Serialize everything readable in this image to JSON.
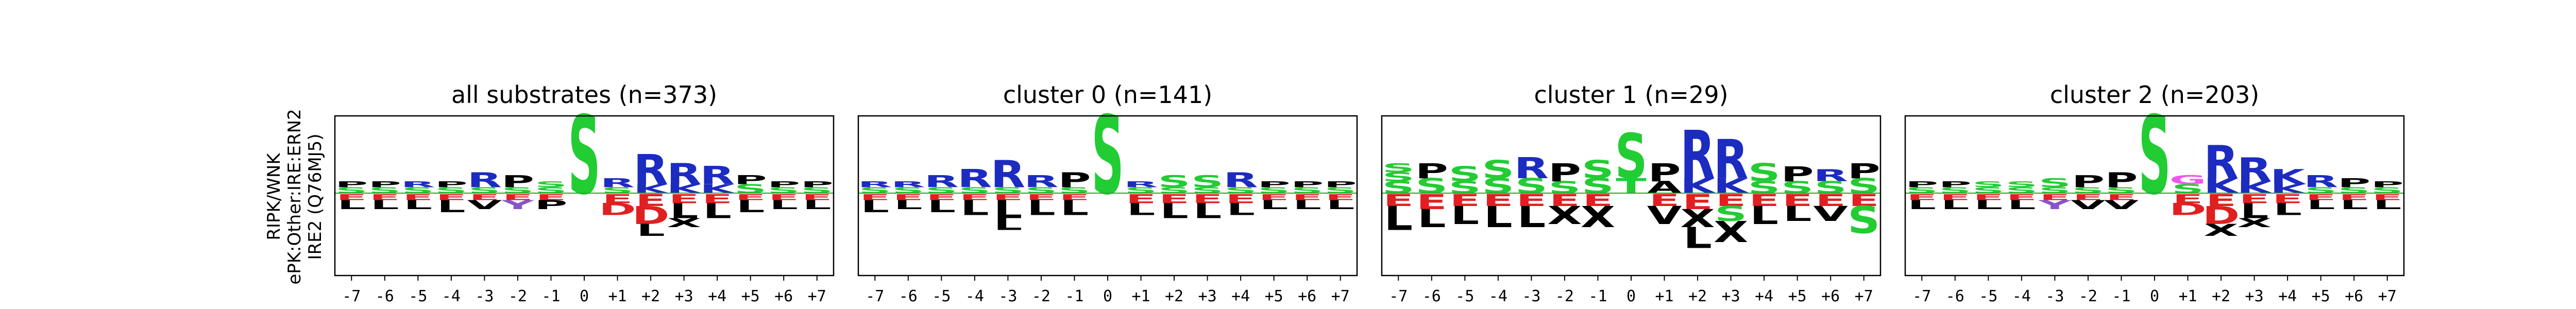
{
  "colors": {
    "S": "#22cc33",
    "T": "#22cc33",
    "R": "#1c2bc0",
    "K": "#1c2bc0",
    "H": "#7799dd",
    "E": "#e02020",
    "D": "#e02020",
    "P": "#000000",
    "L": "#000000",
    "A": "#000000",
    "V": "#000000",
    "I": "#000000",
    "F": "#000000",
    "M": "#000000",
    "W": "#000000",
    "G": "#ee55ee",
    "N": "#cc44cc",
    "Q": "#cc44cc",
    "Y": "#8855cc",
    "C": "#e0a020",
    "X": "#000000",
    "baseline": "#22aa33"
  },
  "y_axis_label": [
    "RIPK/WNK",
    "ePK:Other:IRE:ERN2",
    "IRE2 (Q76MJ5)"
  ],
  "chart_data": [
    {
      "type": "sequence_logo",
      "title": "all substrates (n=373)",
      "positions": [
        "-7",
        "-6",
        "-5",
        "-4",
        "-3",
        "-2",
        "-1",
        "0",
        "+1",
        "+2",
        "+3",
        "+4",
        "+5",
        "+6",
        "+7"
      ],
      "top": [
        [
          [
            "S",
            0.2
          ],
          [
            "P",
            0.2
          ]
        ],
        [
          [
            "S",
            0.2
          ],
          [
            "P",
            0.2
          ]
        ],
        [
          [
            "S",
            0.2
          ],
          [
            "R",
            0.2
          ]
        ],
        [
          [
            "S",
            0.2
          ],
          [
            "P",
            0.2
          ]
        ],
        [
          [
            "S",
            0.2
          ],
          [
            "R",
            0.5
          ]
        ],
        [
          [
            "S",
            0.2
          ],
          [
            "P",
            0.4
          ]
        ],
        [
          [
            "S",
            0.2
          ],
          [
            "S",
            0.2
          ]
        ],
        [
          [
            "S",
            2.6
          ]
        ],
        [
          [
            "S",
            0.2
          ],
          [
            "R",
            0.3
          ]
        ],
        [
          [
            "K",
            0.3
          ],
          [
            "R",
            1.0
          ]
        ],
        [
          [
            "K",
            0.3
          ],
          [
            "R",
            0.7
          ]
        ],
        [
          [
            "K",
            0.3
          ],
          [
            "R",
            0.6
          ]
        ],
        [
          [
            "S",
            0.3
          ],
          [
            "P",
            0.3
          ]
        ],
        [
          [
            "S",
            0.2
          ],
          [
            "P",
            0.2
          ]
        ],
        [
          [
            "S",
            0.2
          ],
          [
            "P",
            0.2
          ]
        ]
      ],
      "bottom": [
        [
          [
            "E",
            0.2
          ],
          [
            "L",
            0.3
          ]
        ],
        [
          [
            "E",
            0.2
          ],
          [
            "L",
            0.3
          ]
        ],
        [
          [
            "E",
            0.2
          ],
          [
            "L",
            0.3
          ]
        ],
        [
          [
            "E",
            0.2
          ],
          [
            "L",
            0.4
          ]
        ],
        [
          [
            "E",
            0.2
          ],
          [
            "V",
            0.3
          ]
        ],
        [
          [
            "E",
            0.2
          ],
          [
            "Y",
            0.3
          ]
        ],
        [
          [
            "E",
            0.2
          ],
          [
            "P",
            0.3
          ]
        ],
        [],
        [
          [
            "E",
            0.3
          ],
          [
            "D",
            0.4
          ]
        ],
        [
          [
            "E",
            0.4
          ],
          [
            "D",
            0.6
          ],
          [
            "L",
            0.4
          ]
        ],
        [
          [
            "E",
            0.3
          ],
          [
            "L",
            0.5
          ],
          [
            "X",
            0.3
          ]
        ],
        [
          [
            "E",
            0.3
          ],
          [
            "L",
            0.5
          ]
        ],
        [
          [
            "E",
            0.2
          ],
          [
            "L",
            0.4
          ]
        ],
        [
          [
            "E",
            0.2
          ],
          [
            "L",
            0.3
          ]
        ],
        [
          [
            "E",
            0.2
          ],
          [
            "L",
            0.3
          ]
        ]
      ]
    },
    {
      "type": "sequence_logo",
      "title": "cluster 0 (n=141)",
      "positions": [
        "-7",
        "-6",
        "-5",
        "-4",
        "-3",
        "-2",
        "-1",
        "0",
        "+1",
        "+2",
        "+3",
        "+4",
        "+5",
        "+6",
        "+7"
      ],
      "top": [
        [
          [
            "S",
            0.2
          ],
          [
            "R",
            0.2
          ]
        ],
        [
          [
            "S",
            0.2
          ],
          [
            "R",
            0.2
          ]
        ],
        [
          [
            "S",
            0.2
          ],
          [
            "R",
            0.4
          ]
        ],
        [
          [
            "S",
            0.2
          ],
          [
            "R",
            0.6
          ]
        ],
        [
          [
            "S",
            0.2
          ],
          [
            "R",
            0.9
          ]
        ],
        [
          [
            "S",
            0.2
          ],
          [
            "R",
            0.4
          ]
        ],
        [
          [
            "S",
            0.2
          ],
          [
            "P",
            0.5
          ]
        ],
        [
          [
            "S",
            2.6
          ]
        ],
        [
          [
            "S",
            0.2
          ],
          [
            "R",
            0.2
          ]
        ],
        [
          [
            "S",
            0.2
          ],
          [
            "S",
            0.4
          ]
        ],
        [
          [
            "S",
            0.2
          ],
          [
            "S",
            0.4
          ]
        ],
        [
          [
            "S",
            0.2
          ],
          [
            "R",
            0.5
          ]
        ],
        [
          [
            "S",
            0.2
          ],
          [
            "P",
            0.2
          ]
        ],
        [
          [
            "S",
            0.2
          ],
          [
            "P",
            0.2
          ]
        ],
        [
          [
            "S",
            0.2
          ],
          [
            "P",
            0.2
          ]
        ]
      ],
      "bottom": [
        [
          [
            "E",
            0.2
          ],
          [
            "L",
            0.4
          ]
        ],
        [
          [
            "E",
            0.2
          ],
          [
            "L",
            0.3
          ]
        ],
        [
          [
            "E",
            0.2
          ],
          [
            "L",
            0.4
          ]
        ],
        [
          [
            "E",
            0.2
          ],
          [
            "L",
            0.5
          ]
        ],
        [
          [
            "E",
            0.2
          ],
          [
            "L",
            0.6
          ],
          [
            "L",
            0.4
          ]
        ],
        [
          [
            "E",
            0.2
          ],
          [
            "L",
            0.5
          ]
        ],
        [
          [
            "E",
            0.2
          ],
          [
            "L",
            0.5
          ]
        ],
        [],
        [
          [
            "E",
            0.3
          ],
          [
            "L",
            0.4
          ]
        ],
        [
          [
            "E",
            0.3
          ],
          [
            "L",
            0.5
          ]
        ],
        [
          [
            "E",
            0.3
          ],
          [
            "L",
            0.5
          ]
        ],
        [
          [
            "E",
            0.3
          ],
          [
            "L",
            0.4
          ]
        ],
        [
          [
            "E",
            0.2
          ],
          [
            "L",
            0.3
          ]
        ],
        [
          [
            "E",
            0.2
          ],
          [
            "L",
            0.3
          ]
        ],
        [
          [
            "E",
            0.2
          ],
          [
            "L",
            0.3
          ]
        ]
      ]
    },
    {
      "type": "sequence_logo",
      "title": "cluster 1 (n=29)",
      "positions": [
        "-7",
        "-6",
        "-5",
        "-4",
        "-3",
        "-2",
        "-1",
        "0",
        "+1",
        "+2",
        "+3",
        "+4",
        "+5",
        "+6",
        "+7"
      ],
      "top": [
        [
          [
            "S",
            0.4
          ],
          [
            "S",
            0.3
          ],
          [
            "S",
            0.3
          ]
        ],
        [
          [
            "S",
            0.5
          ],
          [
            "P",
            0.5
          ]
        ],
        [
          [
            "S",
            0.4
          ],
          [
            "S",
            0.5
          ]
        ],
        [
          [
            "S",
            0.5
          ],
          [
            "S",
            0.6
          ]
        ],
        [
          [
            "S",
            0.5
          ],
          [
            "R",
            0.7
          ]
        ],
        [
          [
            "S",
            0.4
          ],
          [
            "P",
            0.6
          ]
        ],
        [
          [
            "S",
            0.5
          ],
          [
            "S",
            0.6
          ]
        ],
        [
          [
            "T",
            0.5
          ],
          [
            "S",
            1.5
          ]
        ],
        [
          [
            "A",
            0.4
          ],
          [
            "P",
            0.6
          ]
        ],
        [
          [
            "K",
            0.5
          ],
          [
            "R",
            1.6
          ]
        ],
        [
          [
            "K",
            0.5
          ],
          [
            "R",
            1.3
          ]
        ],
        [
          [
            "S",
            0.4
          ],
          [
            "S",
            0.6
          ]
        ],
        [
          [
            "S",
            0.4
          ],
          [
            "P",
            0.5
          ]
        ],
        [
          [
            "S",
            0.4
          ],
          [
            "R",
            0.4
          ]
        ],
        [
          [
            "S",
            0.5
          ],
          [
            "P",
            0.5
          ]
        ]
      ],
      "bottom": [
        [
          [
            "E",
            0.4
          ],
          [
            "L",
            0.8
          ]
        ],
        [
          [
            "E",
            0.5
          ],
          [
            "L",
            0.6
          ]
        ],
        [
          [
            "E",
            0.4
          ],
          [
            "L",
            0.6
          ]
        ],
        [
          [
            "E",
            0.4
          ],
          [
            "L",
            0.7
          ]
        ],
        [
          [
            "E",
            0.4
          ],
          [
            "L",
            0.7
          ]
        ],
        [
          [
            "E",
            0.4
          ],
          [
            "X",
            0.6
          ]
        ],
        [
          [
            "E",
            0.4
          ],
          [
            "X",
            0.7
          ]
        ],
        [],
        [
          [
            "E",
            0.4
          ],
          [
            "V",
            0.6
          ]
        ],
        [
          [
            "E",
            0.5
          ],
          [
            "X",
            0.6
          ],
          [
            "L",
            0.7
          ]
        ],
        [
          [
            "E",
            0.4
          ],
          [
            "S",
            0.5
          ],
          [
            "X",
            0.7
          ]
        ],
        [
          [
            "E",
            0.4
          ],
          [
            "L",
            0.6
          ]
        ],
        [
          [
            "E",
            0.4
          ],
          [
            "L",
            0.5
          ]
        ],
        [
          [
            "E",
            0.4
          ],
          [
            "V",
            0.5
          ]
        ],
        [
          [
            "E",
            0.4
          ],
          [
            "S",
            0.9
          ]
        ]
      ]
    },
    {
      "type": "sequence_logo",
      "title": "cluster 2 (n=203)",
      "positions": [
        "-7",
        "-6",
        "-5",
        "-4",
        "-3",
        "-2",
        "-1",
        "0",
        "+1",
        "+2",
        "+3",
        "+4",
        "+5",
        "+6",
        "+7"
      ],
      "top": [
        [
          [
            "S",
            0.2
          ],
          [
            "P",
            0.2
          ]
        ],
        [
          [
            "S",
            0.2
          ],
          [
            "P",
            0.2
          ]
        ],
        [
          [
            "S",
            0.2
          ],
          [
            "S",
            0.2
          ]
        ],
        [
          [
            "S",
            0.2
          ],
          [
            "S",
            0.2
          ]
        ],
        [
          [
            "S",
            0.2
          ],
          [
            "S",
            0.3
          ]
        ],
        [
          [
            "S",
            0.2
          ],
          [
            "P",
            0.4
          ]
        ],
        [
          [
            "S",
            0.2
          ],
          [
            "P",
            0.5
          ]
        ],
        [
          [
            "S",
            2.6
          ]
        ],
        [
          [
            "S",
            0.3
          ],
          [
            "G",
            0.3
          ]
        ],
        [
          [
            "K",
            0.5
          ],
          [
            "R",
            1.1
          ]
        ],
        [
          [
            "K",
            0.4
          ],
          [
            "R",
            0.8
          ]
        ],
        [
          [
            "K",
            0.3
          ],
          [
            "K",
            0.5
          ]
        ],
        [
          [
            "S",
            0.2
          ],
          [
            "R",
            0.4
          ]
        ],
        [
          [
            "S",
            0.2
          ],
          [
            "P",
            0.3
          ]
        ],
        [
          [
            "S",
            0.2
          ],
          [
            "P",
            0.2
          ]
        ]
      ],
      "bottom": [
        [
          [
            "E",
            0.2
          ],
          [
            "L",
            0.3
          ]
        ],
        [
          [
            "E",
            0.2
          ],
          [
            "L",
            0.3
          ]
        ],
        [
          [
            "E",
            0.2
          ],
          [
            "L",
            0.3
          ]
        ],
        [
          [
            "E",
            0.2
          ],
          [
            "L",
            0.3
          ]
        ],
        [
          [
            "E",
            0.2
          ],
          [
            "Y",
            0.3
          ]
        ],
        [
          [
            "E",
            0.2
          ],
          [
            "V",
            0.3
          ]
        ],
        [
          [
            "E",
            0.2
          ],
          [
            "V",
            0.3
          ]
        ],
        [],
        [
          [
            "E",
            0.3
          ],
          [
            "D",
            0.4
          ]
        ],
        [
          [
            "E",
            0.4
          ],
          [
            "D",
            0.6
          ],
          [
            "X",
            0.4
          ]
        ],
        [
          [
            "E",
            0.3
          ],
          [
            "L",
            0.5
          ],
          [
            "X",
            0.3
          ]
        ],
        [
          [
            "E",
            0.3
          ],
          [
            "L",
            0.4
          ]
        ],
        [
          [
            "E",
            0.2
          ],
          [
            "L",
            0.3
          ]
        ],
        [
          [
            "E",
            0.2
          ],
          [
            "L",
            0.3
          ]
        ],
        [
          [
            "E",
            0.2
          ],
          [
            "L",
            0.3
          ]
        ]
      ]
    }
  ]
}
